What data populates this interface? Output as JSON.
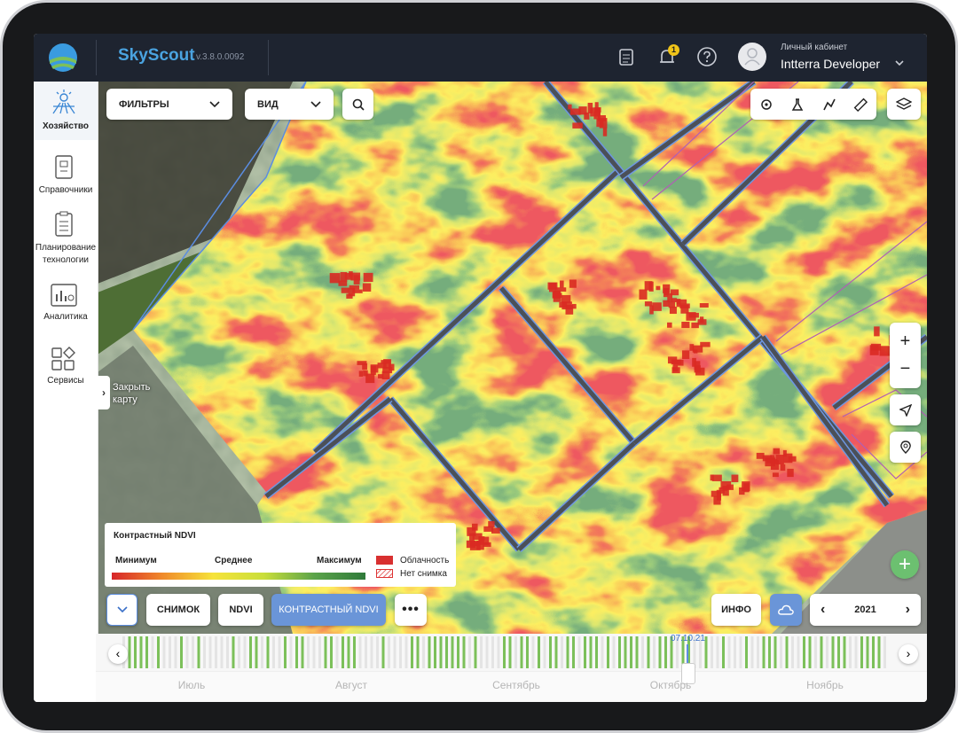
{
  "header": {
    "brand": "SkyScout",
    "version": "v.3.8.0.0092",
    "notification_count": 1,
    "account_label": "Личный кабинет",
    "user_name": "Intterra Developer"
  },
  "sidebar": {
    "items": [
      {
        "label": "Хозяйство"
      },
      {
        "label": "Справочники"
      },
      {
        "label": "Планирование технологии"
      },
      {
        "label": "Аналитика"
      },
      {
        "label": "Сервисы"
      }
    ],
    "close_map": "Закрыть карту"
  },
  "toolbar": {
    "filters": "ФИЛЬТРЫ",
    "view": "ВИД"
  },
  "legend": {
    "title": "Контрастный NDVI",
    "min": "Минимум",
    "mid": "Среднее",
    "max": "Максимум",
    "cloud": "Облачность",
    "no_image": "Нет снимка"
  },
  "bottom_bar": {
    "buttons": [
      "СНИМОК",
      "NDVI",
      "КОНТРАСТНЫЙ NDVI"
    ],
    "info": "ИНФО",
    "year": "2021"
  },
  "timeline": {
    "selected_date": "07.10.21",
    "months": [
      "Июль",
      "Август",
      "Сентябрь",
      "Октябрь",
      "Ноябрь"
    ]
  }
}
